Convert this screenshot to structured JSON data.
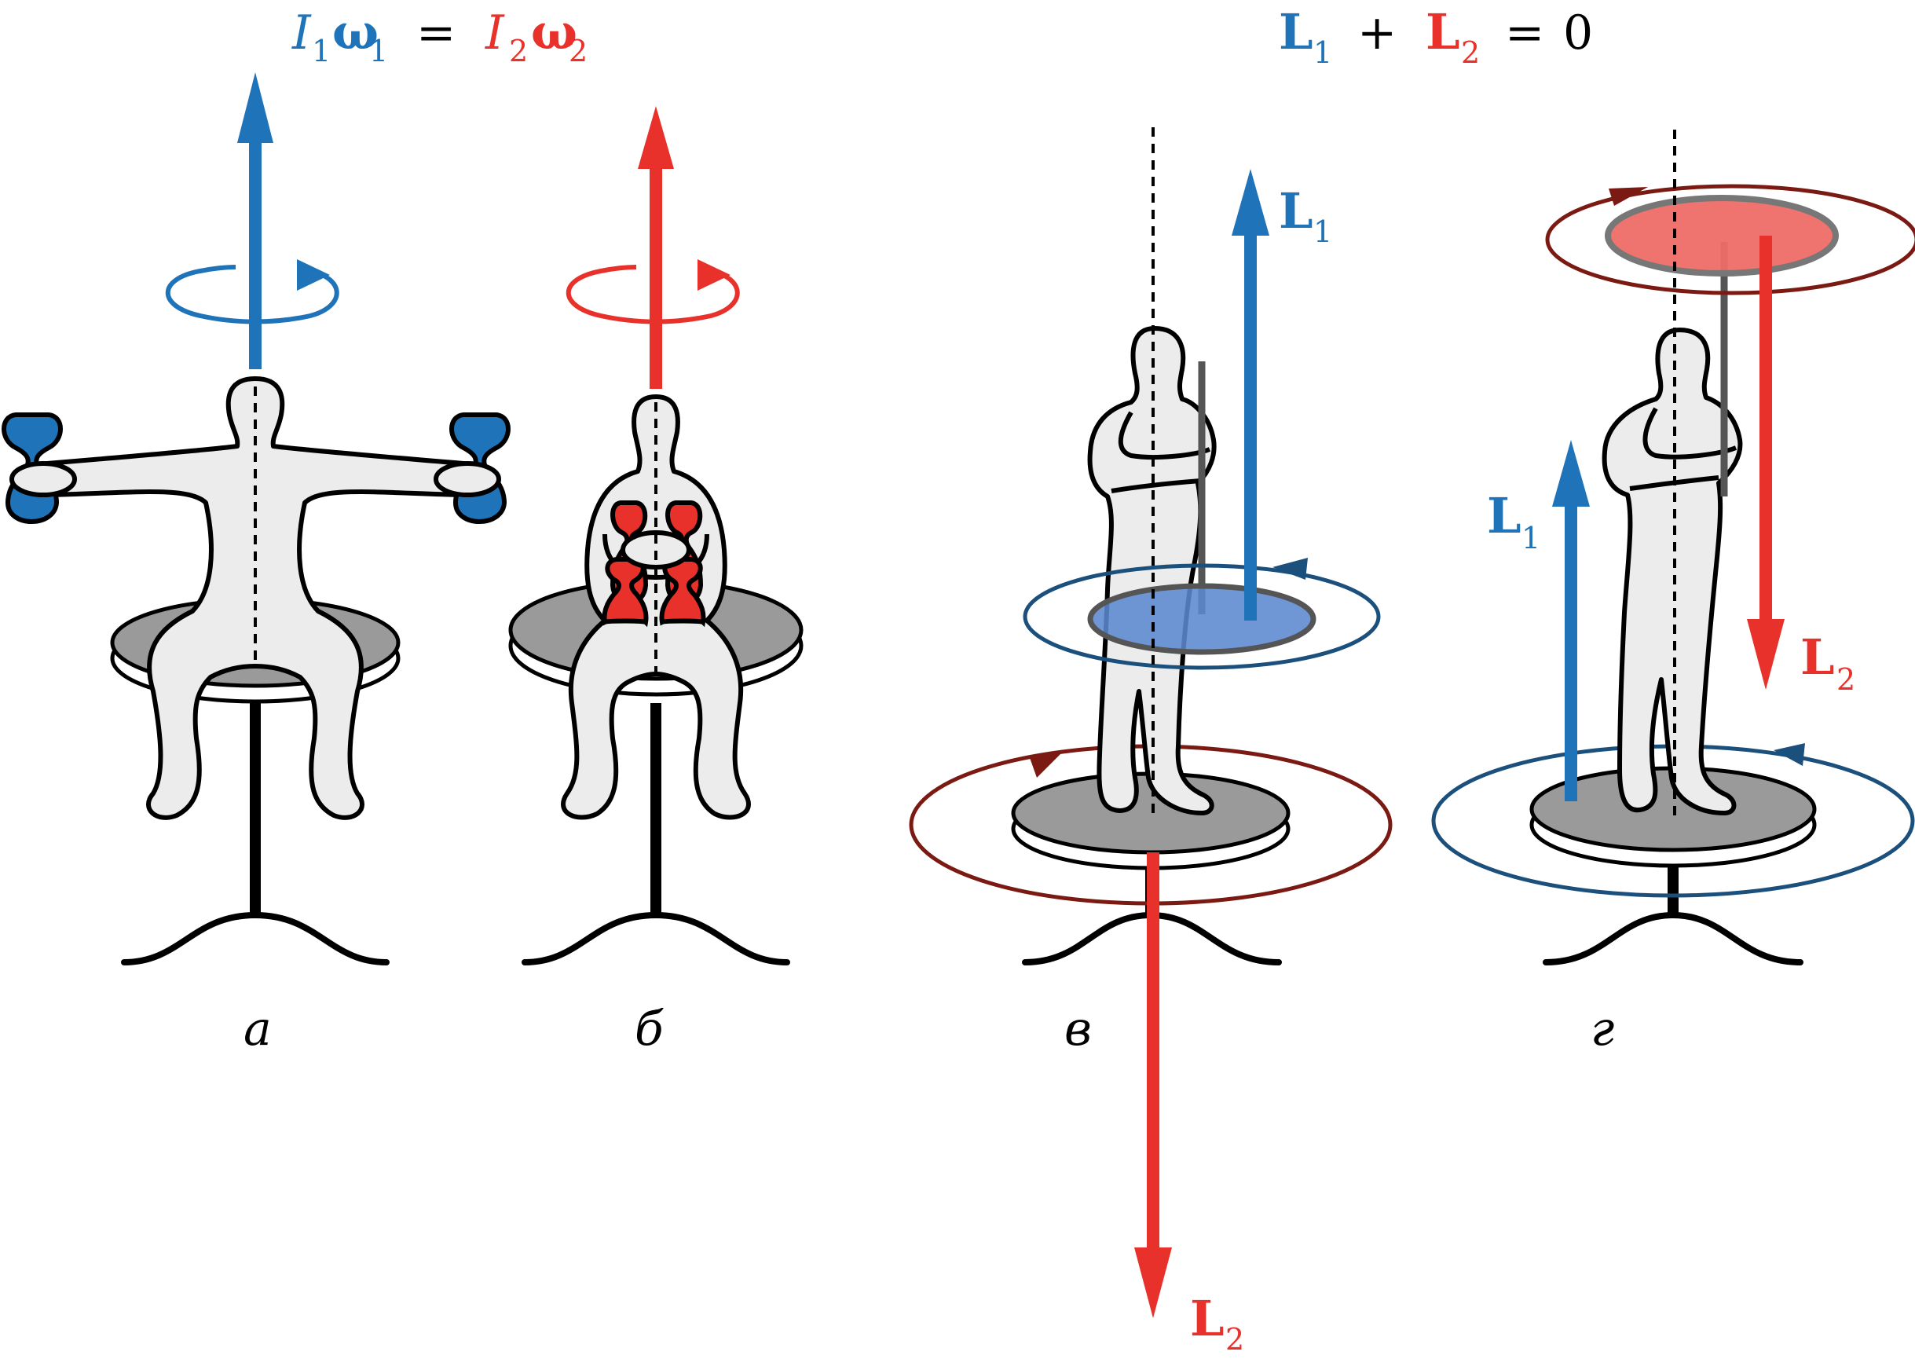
{
  "formulas": {
    "left": {
      "I1": "I",
      "I1_sub": "1",
      "w1": "ω",
      "w1_sub": "1",
      "eq": "=",
      "I2": "I",
      "I2_sub": "2",
      "w2": "ω",
      "w2_sub": "2"
    },
    "right": {
      "L1": "L",
      "L1_sub": "1",
      "plus": "+",
      "L2": "L",
      "L2_sub": "2",
      "eq": "=",
      "zero": "0"
    }
  },
  "panels": {
    "a": {
      "caption": "а"
    },
    "b": {
      "caption": "б"
    },
    "v": {
      "caption": "в",
      "L1": "L",
      "L1_sub": "1",
      "L2": "L",
      "L2_sub": "2"
    },
    "g": {
      "caption": "г",
      "L1": "L",
      "L1_sub": "1",
      "L2": "L",
      "L2_sub": "2"
    }
  },
  "colors": {
    "blue": "#1f73b8",
    "red": "#e8312a",
    "dark_blue": "#1b4f7c",
    "dark_red": "#7a1a12",
    "body_fill": "#ececec",
    "stool_fill": "#9a9a9a",
    "disc_blue": "#5b88cf",
    "disc_red": "#ee6b66"
  }
}
